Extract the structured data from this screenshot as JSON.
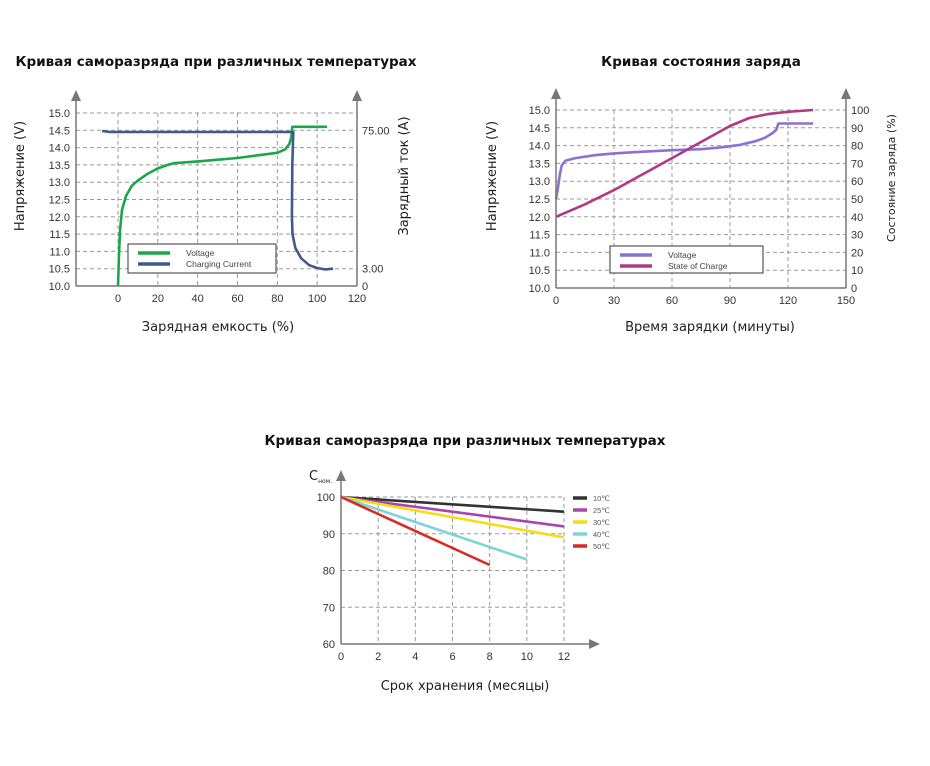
{
  "chart_data": [
    {
      "type": "line",
      "title": "Кривая саморазряда при различных температурах",
      "xlabel": "Зарядная емкость (%)",
      "ylabel": "Напряжение (V)",
      "y2label": "Зарядный ток (A)",
      "xlim": [
        0,
        120
      ],
      "ylim": [
        10.0,
        15.0
      ],
      "x_ticks": [
        "0",
        "20",
        "40",
        "60",
        "80",
        "100",
        "120"
      ],
      "y_ticks": [
        "10.0",
        "10.5",
        "11.0",
        "11.5",
        "12.0",
        "12.5",
        "13.0",
        "13.5",
        "14.0",
        "14.5",
        "15.0"
      ],
      "y2_ticks": [
        {
          "label": "75.00",
          "at_voltage": 14.5
        },
        {
          "label": "3.00",
          "at_voltage": 10.5
        },
        {
          "label": "0",
          "at_voltage": 10.0
        }
      ],
      "grid": true,
      "legend": "bottom-center",
      "series": [
        {
          "name": "Voltage",
          "color": "#1aa64a",
          "axis": "left",
          "points": [
            [
              0,
              10.0
            ],
            [
              0.5,
              10.9
            ],
            [
              1,
              11.6
            ],
            [
              2,
              12.2
            ],
            [
              4,
              12.6
            ],
            [
              7,
              12.9
            ],
            [
              10,
              13.05
            ],
            [
              15,
              13.25
            ],
            [
              20,
              13.4
            ],
            [
              25,
              13.5
            ],
            [
              28,
              13.55
            ],
            [
              40,
              13.6
            ],
            [
              60,
              13.7
            ],
            [
              80,
              13.85
            ],
            [
              84,
              13.95
            ],
            [
              86,
              14.1
            ],
            [
              87,
              14.3
            ],
            [
              87.5,
              14.6
            ],
            [
              105,
              14.6
            ]
          ]
        },
        {
          "name": "Charging Current",
          "color": "#3d5a8a",
          "axis": "left",
          "points": [
            [
              -8,
              14.48
            ],
            [
              -4,
              14.45
            ],
            [
              88,
              14.45
            ],
            [
              87.5,
              13.5
            ],
            [
              87.3,
              12.0
            ],
            [
              87.6,
              11.5
            ],
            [
              89,
              11.1
            ],
            [
              92,
              10.8
            ],
            [
              96,
              10.6
            ],
            [
              100,
              10.52
            ],
            [
              104,
              10.48
            ],
            [
              108,
              10.5
            ]
          ]
        }
      ]
    },
    {
      "type": "line",
      "title": "Кривая состояния заряда",
      "xlabel": "Время зарядки (минуты)",
      "ylabel": "Напряжение (V)",
      "y2label": "Состояние заряда (%)",
      "xlim": [
        0,
        150
      ],
      "ylim": [
        10.0,
        15.0
      ],
      "y2lim": [
        0,
        100
      ],
      "x_ticks": [
        "0",
        "30",
        "60",
        "90",
        "120",
        "150"
      ],
      "y_ticks": [
        "10.0",
        "10.5",
        "11.0",
        "11.5",
        "12.0",
        "12.5",
        "13.0",
        "13.5",
        "14.0",
        "14.5",
        "15.0"
      ],
      "y2_ticks": [
        "0",
        "10",
        "20",
        "30",
        "40",
        "50",
        "60",
        "70",
        "80",
        "90",
        "100"
      ],
      "grid": true,
      "legend": "bottom-center",
      "series": [
        {
          "name": "Voltage",
          "color": "#8a72d4",
          "axis": "left",
          "points": [
            [
              0,
              12.5
            ],
            [
              1,
              12.8
            ],
            [
              2,
              13.2
            ],
            [
              3,
              13.45
            ],
            [
              5,
              13.58
            ],
            [
              10,
              13.65
            ],
            [
              20,
              13.73
            ],
            [
              30,
              13.78
            ],
            [
              45,
              13.83
            ],
            [
              60,
              13.87
            ],
            [
              75,
              13.9
            ],
            [
              85,
              13.95
            ],
            [
              95,
              14.02
            ],
            [
              103,
              14.12
            ],
            [
              108,
              14.22
            ],
            [
              112,
              14.35
            ],
            [
              114,
              14.45
            ],
            [
              115,
              14.62
            ],
            [
              133,
              14.62
            ]
          ]
        },
        {
          "name": "State of Charge",
          "color": "#b03a82",
          "axis": "right",
          "points": [
            [
              0,
              40
            ],
            [
              15,
              47
            ],
            [
              30,
              55
            ],
            [
              45,
              64
            ],
            [
              60,
              73
            ],
            [
              75,
              82
            ],
            [
              90,
              91
            ],
            [
              100,
              95.5
            ],
            [
              110,
              97.8
            ],
            [
              120,
              99
            ],
            [
              133,
              100
            ]
          ]
        }
      ]
    },
    {
      "type": "line",
      "title": "Кривая саморазряда при различных температурах",
      "xlabel": "Срок хранения (месяцы)",
      "ylabel": "C",
      "ylabel_sub": "ном.",
      "xlim": [
        0,
        12
      ],
      "ylim": [
        60,
        100
      ],
      "x_ticks": [
        "0",
        "2",
        "4",
        "6",
        "8",
        "10",
        "12"
      ],
      "y_ticks": [
        "60",
        "70",
        "80",
        "90",
        "100"
      ],
      "grid": true,
      "legend": "right",
      "series": [
        {
          "name": "10℃",
          "color": "#333333",
          "points": [
            [
              0,
              100
            ],
            [
              12,
              96
            ]
          ]
        },
        {
          "name": "25℃",
          "color": "#a845a8",
          "points": [
            [
              0,
              100
            ],
            [
              12,
              92
            ]
          ]
        },
        {
          "name": "30℃",
          "color": "#f5dc1a",
          "points": [
            [
              0,
              100
            ],
            [
              12,
              89
            ]
          ]
        },
        {
          "name": "40℃",
          "color": "#7dd3d8",
          "points": [
            [
              0,
              100
            ],
            [
              10,
              83
            ]
          ]
        },
        {
          "name": "50℃",
          "color": "#d92a22",
          "points": [
            [
              0,
              100
            ],
            [
              8,
              81.5
            ]
          ]
        }
      ]
    }
  ]
}
